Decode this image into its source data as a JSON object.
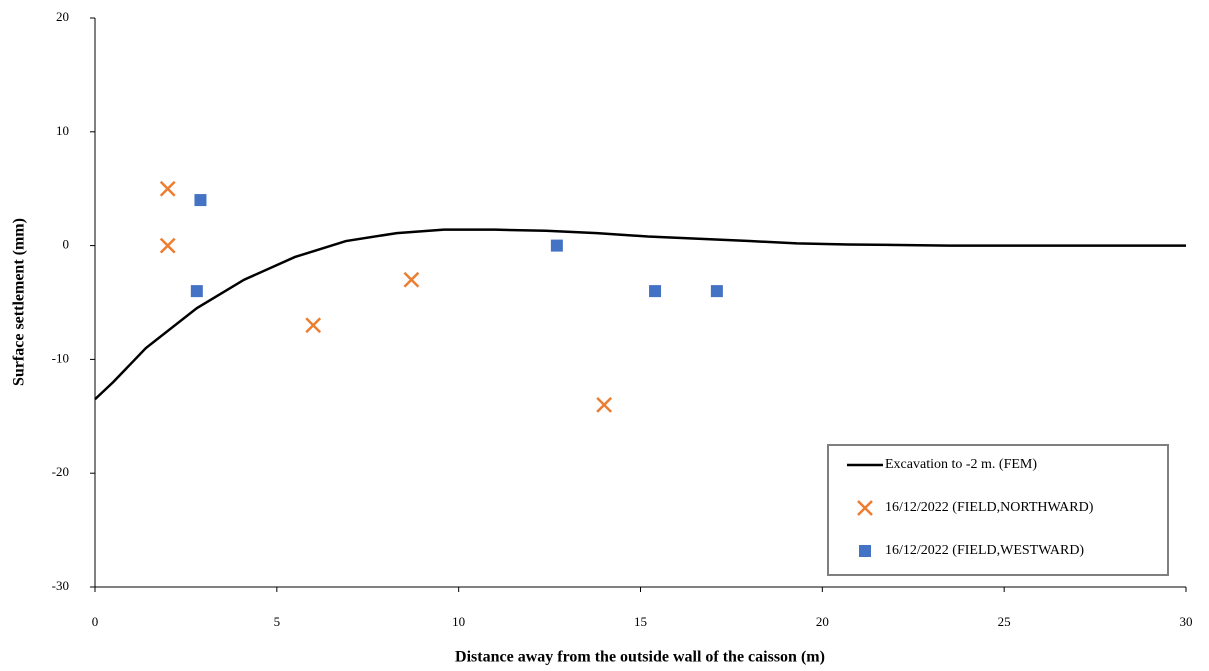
{
  "chart_data": {
    "type": "scatter",
    "x_label": "Distance away from the outside wall of the caisson (m)",
    "y_label": "Surface settlement (mm)",
    "xlim": [
      0,
      30
    ],
    "xticks": [
      0,
      5,
      10,
      15,
      20,
      25,
      30
    ],
    "ylim": [
      -30,
      20
    ],
    "yticks": [
      -30,
      -20,
      -10,
      0,
      10,
      20
    ],
    "grid": false,
    "legend": "lower right",
    "series": [
      {
        "name": "Excavation to -2 m.  (FEM)",
        "kind": "line",
        "color": "#000000",
        "x": [
          0,
          0.5,
          1.4,
          2.8,
          4.1,
          5.5,
          6.9,
          8.3,
          9.6,
          11,
          12.4,
          13.8,
          15.2,
          16.6,
          18,
          19.3,
          20.7,
          22.1,
          23.5,
          25,
          30
        ],
        "values": [
          -13.5,
          -12,
          -9,
          -5.5,
          -3,
          -1,
          0.4,
          1.1,
          1.4,
          1.4,
          1.3,
          1.1,
          0.8,
          0.6,
          0.4,
          0.2,
          0.1,
          0.05,
          0,
          0,
          0
        ]
      },
      {
        "name": "16/12/2022 (FIELD,NORTHWARD)",
        "kind": "cross",
        "color": "#ed7d31",
        "x": [
          2,
          2,
          6,
          8.7,
          14
        ],
        "values": [
          5,
          0,
          -7,
          -3,
          -14
        ]
      },
      {
        "name": "16/12/2022 (FIELD,WESTWARD)",
        "kind": "square",
        "color": "#4472c4",
        "x": [
          2.9,
          2.8,
          12.7,
          15.4,
          17.1
        ],
        "values": [
          4,
          -4,
          0,
          -4,
          -4
        ]
      }
    ]
  }
}
